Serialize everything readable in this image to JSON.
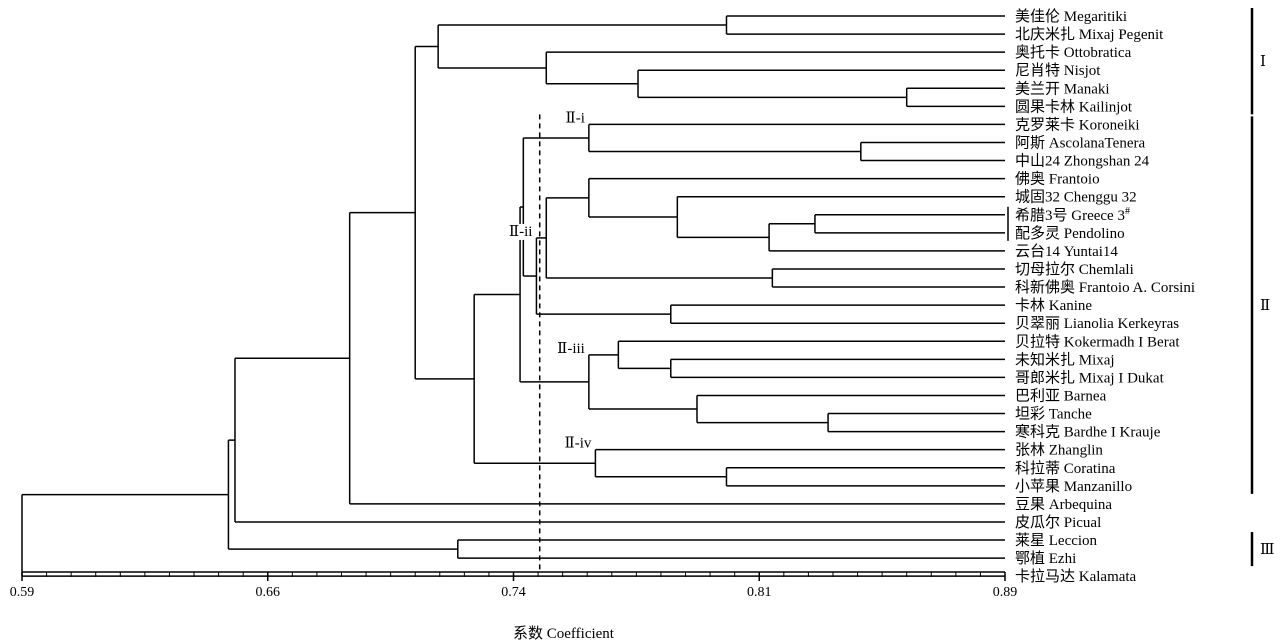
{
  "chart_data": {
    "type": "dendrogram",
    "xlabel": "系数 Coefficient",
    "xlim": [
      0.59,
      0.89
    ],
    "xticks": [
      "0.59",
      "0.66",
      "0.74",
      "0.81",
      "0.89"
    ],
    "cutoff": 0.748,
    "leaves": [
      "美佳伦 Megaritiki",
      "北庆米扎 Mixaj Pegenit",
      "奥托卡 Ottobratica",
      "尼肖特 Nisjot",
      "美兰开 Manaki",
      "圆果卡林 Kailinjot",
      "克罗莱卡 Koroneiki",
      "阿斯 AscolanaTenera",
      "中山24 Zhongshan 24",
      "佛奥 Frantoio",
      "城固32 Chenggu 32",
      "希腊3号 Greece 3",
      "配多灵 Pendolino",
      "云台14 Yuntai14",
      "切母拉尔 Chemlali",
      "科新佛奥 Frantoio A. Corsini",
      "卡林 Kanine",
      "贝翠丽 Lianolia Kerkeyras",
      "贝拉特 Kokermadh I Berat",
      "未知米扎 Mixaj",
      "哥郎米扎 Mixaj I Dukat",
      "巴利亚 Barnea",
      "坦彩 Tanche",
      "寒科克 Bardhe I Krauje",
      "张林 Zhanglin",
      "科拉蒂 Coratina",
      "小苹果 Manzanillo",
      "豆果 Arbequina",
      "皮瓜尔 Picual",
      "莱星 Leccion",
      "鄂植 Ezhi",
      "卡拉马达 Kalamata"
    ],
    "merges": [
      {
        "c": [
          0,
          1
        ],
        "h": 0.805
      },
      {
        "c": [
          4,
          5
        ],
        "h": 0.86
      },
      {
        "c": [
          3,
          "m1"
        ],
        "h": 0.778
      },
      {
        "c": [
          2,
          "m2"
        ],
        "h": 0.75
      },
      {
        "c": [
          "m0",
          "m3"
        ],
        "h": 0.717
      },
      {
        "c": [
          7,
          8
        ],
        "h": 0.846
      },
      {
        "c": [
          6,
          "m5"
        ],
        "h": 0.763
      },
      {
        "c": [
          11,
          12
        ],
        "h": 0.832
      },
      {
        "c": [
          "m7",
          13
        ],
        "h": 0.818
      },
      {
        "c": [
          10,
          "m8"
        ],
        "h": 0.79
      },
      {
        "c": [
          9,
          "m9"
        ],
        "h": 0.763
      },
      {
        "c": [
          14,
          15
        ],
        "h": 0.819
      },
      {
        "c": [
          "m10",
          "m11"
        ],
        "h": 0.75
      },
      {
        "c": [
          16,
          17
        ],
        "h": 0.788
      },
      {
        "c": [
          "m12",
          "m13"
        ],
        "h": 0.747
      },
      {
        "c": [
          "m6",
          "m14"
        ],
        "h": 0.743
      },
      {
        "c": [
          19,
          20
        ],
        "h": 0.788
      },
      {
        "c": [
          18,
          "m16"
        ],
        "h": 0.772
      },
      {
        "c": [
          22,
          23
        ],
        "h": 0.836
      },
      {
        "c": [
          21,
          "m18"
        ],
        "h": 0.796
      },
      {
        "c": [
          "m17",
          "m19"
        ],
        "h": 0.763
      },
      {
        "c": [
          "m15",
          "m20"
        ],
        "h": 0.742
      },
      {
        "c": [
          25,
          26
        ],
        "h": 0.805
      },
      {
        "c": [
          24,
          "m22"
        ],
        "h": 0.765
      },
      {
        "c": [
          "m21",
          "m23"
        ],
        "h": 0.728
      },
      {
        "c": [
          "m4",
          "m24"
        ],
        "h": 0.71
      },
      {
        "c": [
          "m25",
          27
        ],
        "h": 0.69
      },
      {
        "c": [
          "m26",
          28
        ],
        "h": 0.655
      },
      {
        "c": [
          29,
          30
        ],
        "h": 0.723
      },
      {
        "c": [
          "m27",
          "m28"
        ],
        "h": 0.653
      },
      {
        "c": [
          "m29",
          31
        ],
        "h": 0.59
      }
    ],
    "subclusters": [
      {
        "label": "Ⅱ-i",
        "merge": 6
      },
      {
        "label": "Ⅱ-ii",
        "merge": 14
      },
      {
        "label": "Ⅱ-iii",
        "merge": 20
      },
      {
        "label": "Ⅱ-iv",
        "merge": 23
      }
    ],
    "groups": [
      {
        "label": "Ⅰ",
        "from": 0,
        "to": 5
      },
      {
        "label": "Ⅱ",
        "from": 6,
        "to": 26
      },
      {
        "label": "Ⅲ",
        "from": 29,
        "to": 30
      }
    ],
    "brackets": [
      {
        "from": 11,
        "to": 12
      }
    ]
  }
}
